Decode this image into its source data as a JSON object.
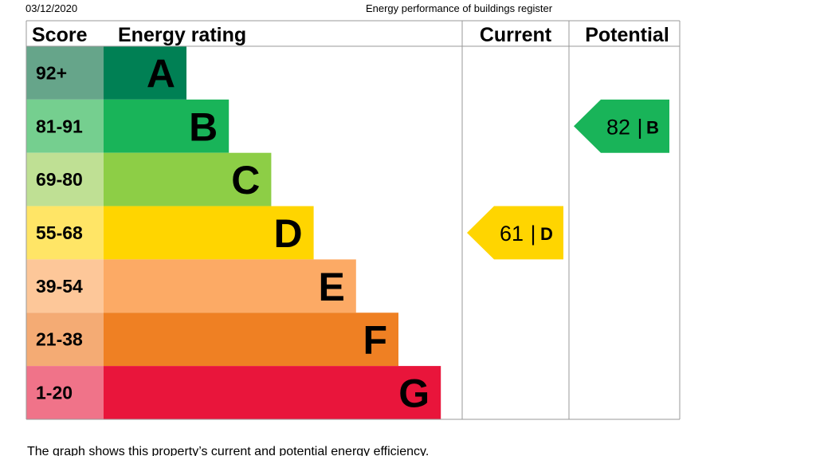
{
  "header": {
    "date": "03/12/2020",
    "title": "Energy performance of buildings register"
  },
  "table": {
    "columns": [
      "Score",
      "Energy rating",
      "Current",
      "Potential"
    ],
    "bands": [
      {
        "score": "92+",
        "letter": "A",
        "color": "#008054",
        "score_color": "#66a58a"
      },
      {
        "score": "81-91",
        "letter": "B",
        "color": "#19b459",
        "score_color": "#75cf8f"
      },
      {
        "score": "69-80",
        "letter": "C",
        "color": "#8dce46",
        "score_color": "#bfe094"
      },
      {
        "score": "55-68",
        "letter": "D",
        "color": "#ffd500",
        "score_color": "#ffe566"
      },
      {
        "score": "39-54",
        "letter": "E",
        "color": "#fcaa65",
        "score_color": "#fdc799"
      },
      {
        "score": "21-38",
        "letter": "F",
        "color": "#ef8023",
        "score_color": "#f4ab74"
      },
      {
        "score": "1-20",
        "letter": "G",
        "color": "#e9153b",
        "score_color": "#f07389"
      }
    ],
    "current": {
      "value": 61,
      "letter": "D"
    },
    "potential": {
      "value": 82,
      "letter": "B"
    },
    "separator": "|"
  },
  "footer": {
    "text": "The graph shows this property’s current and potential energy efficiency."
  }
}
